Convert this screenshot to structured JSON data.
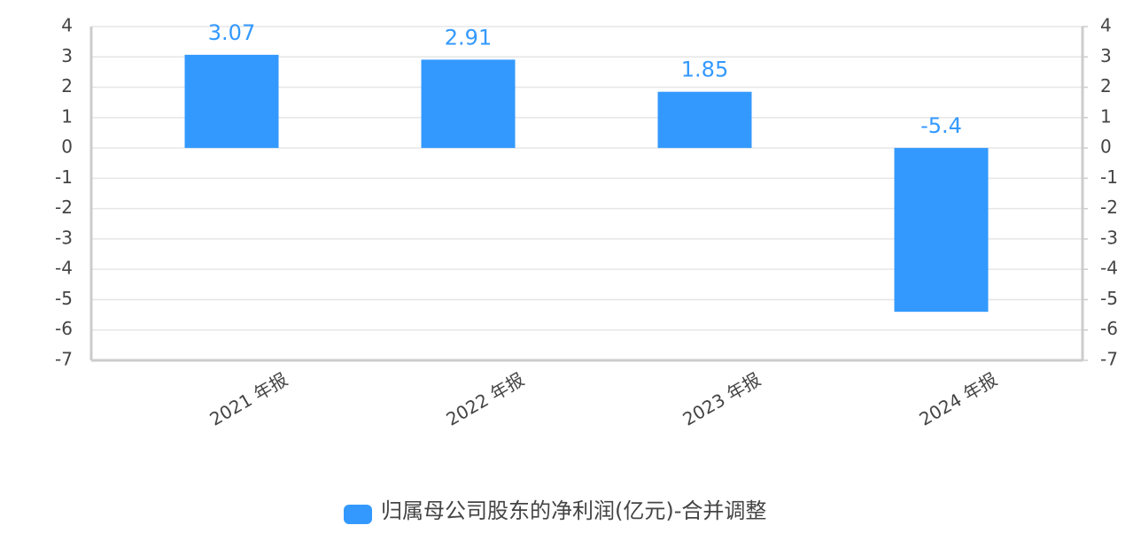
{
  "chart_data": {
    "type": "bar",
    "categories": [
      "2021 年报",
      "2022 年报",
      "2023 年报",
      "2024 年报"
    ],
    "series": [
      {
        "name": "归属母公司股东的净利润(亿元)-合并调整",
        "color": "#3399ff",
        "values": [
          3.07,
          2.91,
          1.85,
          -5.4
        ]
      }
    ],
    "ylim": [
      -7,
      4
    ],
    "yticks": [
      4,
      3,
      2,
      1,
      0,
      -1,
      -2,
      -3,
      -4,
      -5,
      -6,
      -7
    ],
    "y2lim": [
      -7,
      4
    ],
    "y2ticks": [
      4,
      3,
      2,
      1,
      0,
      -1,
      -2,
      -3,
      -4,
      -5,
      -6,
      -7
    ],
    "grid": true,
    "legend": "bottom"
  }
}
